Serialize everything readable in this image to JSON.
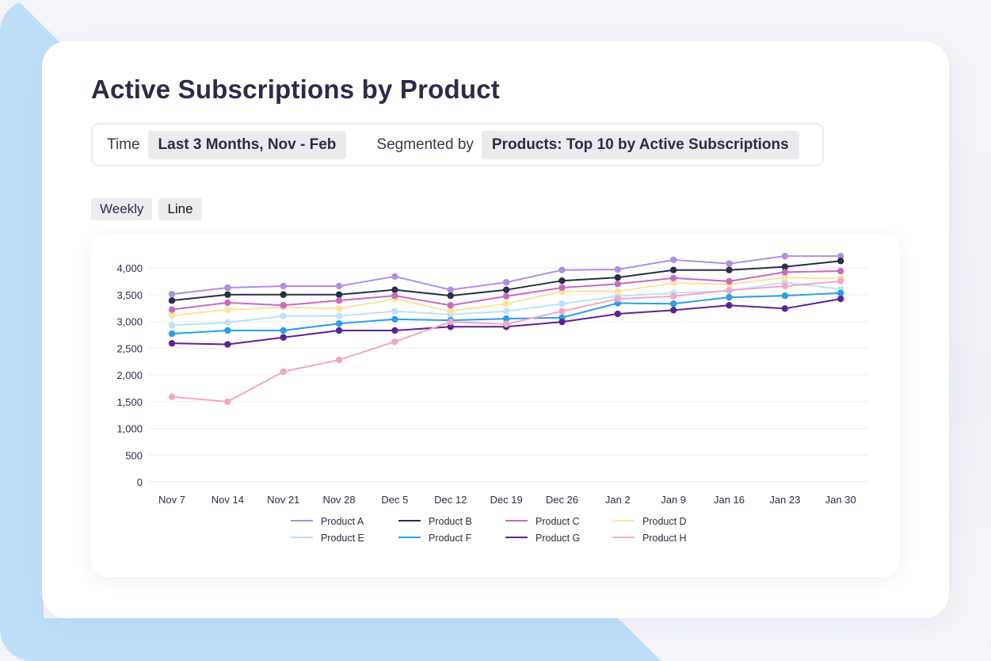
{
  "title": "Active Subscriptions by Product",
  "filters": {
    "time_label": "Time",
    "time_value": "Last 3 Months, Nov - Feb",
    "segment_label": "Segmented by",
    "segment_value": "Products: Top 10 by Active Subscriptions"
  },
  "toggles": {
    "granularity": "Weekly",
    "chart_type": "Line"
  },
  "chart_data": {
    "type": "line",
    "title": "Active Subscriptions by Product",
    "xlabel": "",
    "ylabel": "",
    "ylim": [
      0,
      4000
    ],
    "yticks": [
      0,
      500,
      1000,
      1500,
      2000,
      2500,
      3000,
      3500,
      4000
    ],
    "ytick_labels": [
      "0",
      "500",
      "1,000",
      "1,500",
      "2,000",
      "2,500",
      "3,000",
      "3,500",
      "4,000"
    ],
    "grid": true,
    "legend_position": "bottom",
    "categories": [
      "Nov 7",
      "Nov 14",
      "Nov 21",
      "Nov 28",
      "Dec 5",
      "Dec 12",
      "Dec 19",
      "Dec 26",
      "Jan 2",
      "Jan 9",
      "Jan 16",
      "Jan 23",
      "Jan 30"
    ],
    "series": [
      {
        "name": "Product A",
        "color": "#b18ee3",
        "values": [
          3510,
          3630,
          3660,
          3660,
          3840,
          3590,
          3730,
          3960,
          3970,
          4150,
          4080,
          4220,
          4220
        ]
      },
      {
        "name": "Product B",
        "color": "#2b2d4a",
        "values": [
          3390,
          3500,
          3500,
          3500,
          3590,
          3480,
          3590,
          3760,
          3820,
          3960,
          3960,
          4020,
          4130
        ]
      },
      {
        "name": "Product C",
        "color": "#c86bbf",
        "values": [
          3220,
          3350,
          3300,
          3390,
          3480,
          3300,
          3470,
          3630,
          3700,
          3810,
          3750,
          3920,
          3940
        ]
      },
      {
        "name": "Product D",
        "color": "#fbe3a0",
        "values": [
          3110,
          3220,
          3260,
          3240,
          3420,
          3190,
          3330,
          3560,
          3560,
          3720,
          3690,
          3820,
          3800
        ]
      },
      {
        "name": "Product E",
        "color": "#c0dff8",
        "values": [
          2930,
          2980,
          3100,
          3100,
          3190,
          3130,
          3190,
          3330,
          3470,
          3530,
          3570,
          3730,
          3600
        ]
      },
      {
        "name": "Product F",
        "color": "#2c9de8",
        "values": [
          2770,
          2830,
          2830,
          2960,
          3040,
          3020,
          3050,
          3070,
          3340,
          3330,
          3450,
          3480,
          3530
        ]
      },
      {
        "name": "Product G",
        "color": "#5b2590",
        "values": [
          2590,
          2570,
          2700,
          2830,
          2830,
          2900,
          2900,
          2990,
          3140,
          3210,
          3300,
          3240,
          3420
        ]
      },
      {
        "name": "Product H",
        "color": "#f0a8c8",
        "values": [
          1590,
          1500,
          2060,
          2280,
          2620,
          2990,
          2950,
          3190,
          3420,
          3470,
          3580,
          3660,
          3750
        ]
      }
    ]
  }
}
